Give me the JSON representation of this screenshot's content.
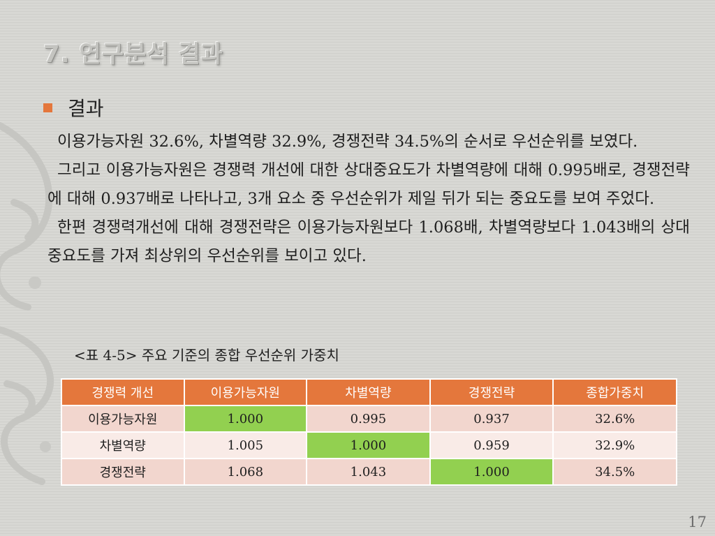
{
  "slide": {
    "title": "7. 연구분석 결과",
    "bullet": "결과",
    "paragraphs": [
      "이용가능자원 32.6%, 차별역량 32.9%, 경쟁전략 34.5%의 순서로 우선순위를 보였다.",
      "그리고 이용가능자원은 경쟁력 개선에 대한 상대중요도가 차별역량에 대해 0.995배로, 경쟁전략에 대해 0.937배로 나타나고, 3개 요소 중 우선순위가 제일 뒤가 되는 중요도를 보여 주었다.",
      "한편 경쟁력개선에 대해 경쟁전략은 이용가능자원보다 1.068배, 차별역량보다 1.043배의 상대중요도를 가져 최상위의 우선순위를 보이고 있다."
    ],
    "page_number": "17"
  },
  "table": {
    "caption": "<표 4-5> 주요 기준의 종합 우선순위 가중치",
    "headers": [
      "경쟁력 개선",
      "이용가능자원",
      "차별역량",
      "경쟁전략",
      "종합가중치"
    ],
    "rows": [
      [
        "이용가능자원",
        "1.000",
        "0.995",
        "0.937",
        "32.6%"
      ],
      [
        "차별역량",
        "1.005",
        "1.000",
        "0.959",
        "32.9%"
      ],
      [
        "경쟁전략",
        "1.068",
        "1.043",
        "1.000",
        "34.5%"
      ]
    ]
  },
  "colors": {
    "accent": "#e4773c",
    "diagonal": "#92d050",
    "row_dark": "#f2d6ce",
    "row_light": "#f9ebe7"
  }
}
